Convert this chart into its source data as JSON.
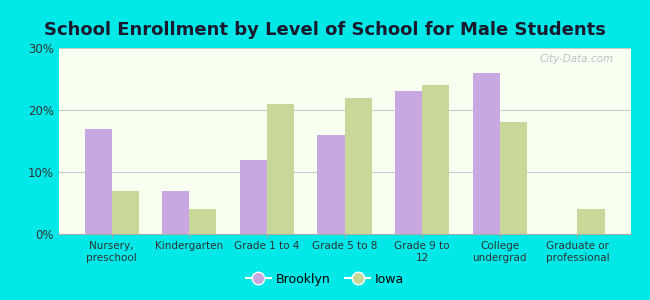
{
  "title": "School Enrollment by Level of School for Male Students",
  "categories": [
    "Nursery,\npreschool",
    "Kindergarten",
    "Grade 1 to 4",
    "Grade 5 to 8",
    "Grade 9 to\n12",
    "College\nundergrad",
    "Graduate or\nprofessional"
  ],
  "brooklyn": [
    17.0,
    7.0,
    12.0,
    16.0,
    23.0,
    26.0,
    0.0
  ],
  "iowa": [
    7.0,
    4.0,
    21.0,
    22.0,
    24.0,
    18.0,
    4.0
  ],
  "brooklyn_color": "#c8a8e0",
  "iowa_color": "#c8d898",
  "background_color": "#00e8e8",
  "plot_bg_top": "#e8f5e0",
  "plot_bg_bottom": "#f8fff0",
  "ylim": [
    0,
    30
  ],
  "yticks": [
    0,
    10,
    20,
    30
  ],
  "ytick_labels": [
    "0%",
    "10%",
    "20%",
    "30%"
  ],
  "title_fontsize": 13,
  "legend_labels": [
    "Brooklyn",
    "Iowa"
  ],
  "bar_width": 0.35,
  "grid_color": "#c8c8c8",
  "watermark": "City-Data.com"
}
